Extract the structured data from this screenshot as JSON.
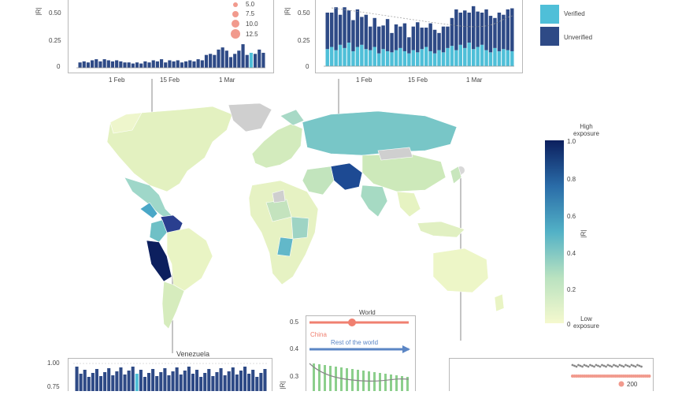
{
  "panels": {
    "top_left": {
      "ylabel": "|R|",
      "yticks": [
        "0.50",
        "0.25",
        "0"
      ],
      "xticks": [
        "1 Feb",
        "15 Feb",
        "1 Mar"
      ],
      "size_legend": [
        "5.0",
        "7.5",
        "10.0",
        "12.5"
      ],
      "values": [
        0.05,
        0.06,
        0.05,
        0.07,
        0.08,
        0.06,
        0.08,
        0.07,
        0.06,
        0.07,
        0.06,
        0.05,
        0.05,
        0.04,
        0.05,
        0.04,
        0.06,
        0.05,
        0.07,
        0.06,
        0.08,
        0.05,
        0.07,
        0.06,
        0.07,
        0.05,
        0.06,
        0.07,
        0.06,
        0.08,
        0.07,
        0.12,
        0.13,
        0.12,
        0.17,
        0.19,
        0.16,
        0.1,
        0.13,
        0.16,
        0.22,
        0.12,
        0.14,
        0.13,
        0.17,
        0.14
      ]
    },
    "top_middle": {
      "ylabel": "|R|",
      "yticks": [
        "0.50",
        "0.25",
        "0"
      ],
      "xticks": [
        "1 Feb",
        "15 Feb",
        "1 Mar"
      ],
      "verified": [
        0.16,
        0.18,
        0.15,
        0.2,
        0.17,
        0.22,
        0.14,
        0.18,
        0.2,
        0.16,
        0.15,
        0.18,
        0.12,
        0.16,
        0.14,
        0.13,
        0.15,
        0.17,
        0.14,
        0.12,
        0.15,
        0.13,
        0.16,
        0.18,
        0.14,
        0.12,
        0.15,
        0.13,
        0.17,
        0.19,
        0.15,
        0.2,
        0.17,
        0.22,
        0.16,
        0.18,
        0.2,
        0.15,
        0.13,
        0.17,
        0.14,
        0.16,
        0.15,
        0.14
      ],
      "unverified": [
        0.34,
        0.32,
        0.4,
        0.28,
        0.38,
        0.3,
        0.29,
        0.35,
        0.26,
        0.32,
        0.22,
        0.27,
        0.25,
        0.22,
        0.3,
        0.18,
        0.24,
        0.2,
        0.26,
        0.15,
        0.22,
        0.28,
        0.2,
        0.18,
        0.26,
        0.22,
        0.16,
        0.24,
        0.2,
        0.26,
        0.38,
        0.3,
        0.35,
        0.28,
        0.4,
        0.33,
        0.3,
        0.38,
        0.34,
        0.28,
        0.36,
        0.32,
        0.38,
        0.4
      ],
      "legend": [
        {
          "label": "Verified",
          "color": "#4fbfd8"
        },
        {
          "label": "Unverified",
          "color": "#2e4a86"
        }
      ]
    },
    "bottom_left": {
      "title": "Venezuela",
      "yticks": [
        "1.00",
        "0.75"
      ]
    },
    "bottom_middle": {
      "ylabel": "|R|",
      "yticks": [
        "0.5",
        "0.4",
        "0.3"
      ],
      "world_label": "World",
      "china_label": "China",
      "rest_label": "Rest of the world"
    },
    "bottom_right": {
      "legend_value": "200"
    }
  },
  "colorbar": {
    "title": "|R|",
    "high_label": "High\nexposure",
    "low_label": "Low\nexposure",
    "ticks": [
      "1.0",
      "0.8",
      "0.6",
      "0.4",
      "0.2",
      "0"
    ]
  },
  "colors": {
    "verified": "#4fbfd8",
    "unverified": "#2e4a86",
    "china": "#f08070",
    "world_blue": "#5b86c5",
    "map_high": "#0c1f5e",
    "map_low": "#f0f5c8",
    "no_data": "#cfcfcf"
  }
}
